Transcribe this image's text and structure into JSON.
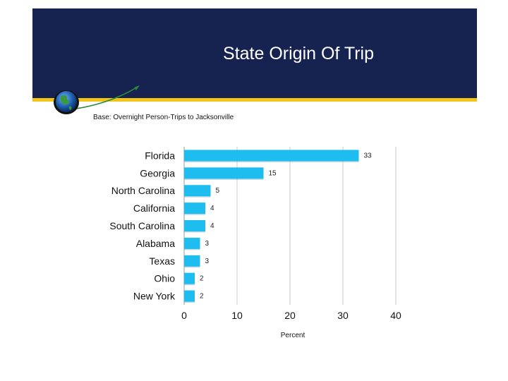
{
  "slide": {
    "title": "State Origin Of Trip",
    "subtitle": "Base: Overnight Person-Trips to Jacksonville"
  },
  "colors": {
    "banner": "#162350",
    "stripe": "#f2c418",
    "bar": "#1ebdf0",
    "grid": "#c8c8c8"
  },
  "chart_data": {
    "type": "bar",
    "orientation": "horizontal",
    "categories": [
      "Florida",
      "Georgia",
      "North Carolina",
      "California",
      "South Carolina",
      "Alabama",
      "Texas",
      "Ohio",
      "New York"
    ],
    "values": [
      33,
      15,
      5,
      4,
      4,
      3,
      3,
      2,
      2
    ],
    "xlabel": "Percent",
    "xlim": [
      0,
      40
    ],
    "xticks": [
      0,
      10,
      20,
      30,
      40
    ],
    "grid": true,
    "data_labels": true
  }
}
